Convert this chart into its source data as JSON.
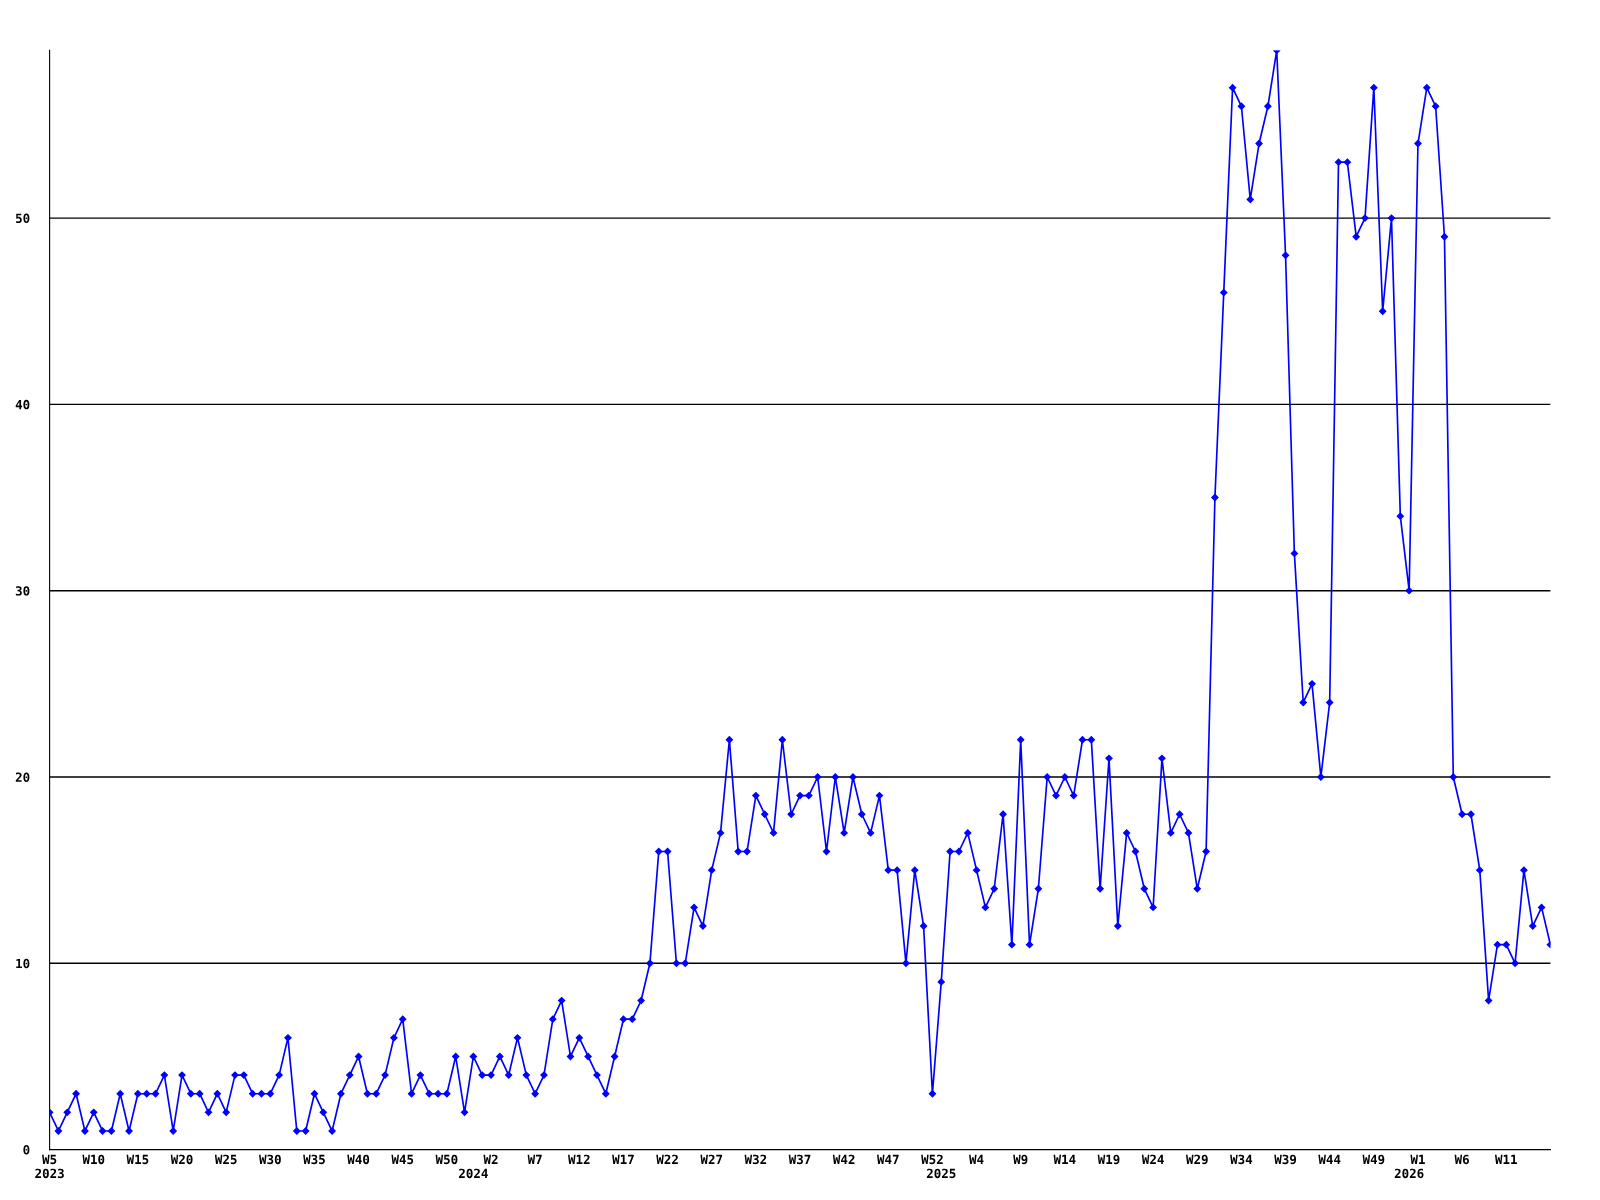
{
  "chart_data": {
    "type": "line",
    "categories": [
      "W5\n2023",
      null,
      null,
      null,
      null,
      "W10",
      null,
      null,
      null,
      null,
      "W15",
      null,
      null,
      null,
      null,
      "W20",
      null,
      null,
      null,
      null,
      "W25",
      null,
      null,
      null,
      null,
      "W30",
      null,
      null,
      null,
      null,
      "W35",
      null,
      null,
      null,
      null,
      "W40",
      null,
      null,
      null,
      null,
      "W45",
      null,
      null,
      null,
      null,
      "W50",
      null,
      null,
      "\n2024",
      null,
      "W2",
      null,
      null,
      null,
      null,
      "W7",
      null,
      null,
      null,
      null,
      "W12",
      null,
      null,
      null,
      null,
      "W17",
      null,
      null,
      null,
      null,
      "W22",
      null,
      null,
      null,
      null,
      "W27",
      null,
      null,
      null,
      null,
      "W32",
      null,
      null,
      null,
      null,
      "W37",
      null,
      null,
      null,
      null,
      "W42",
      null,
      null,
      null,
      null,
      "W47",
      null,
      null,
      null,
      null,
      "W52",
      "\n2025",
      null,
      null,
      null,
      "W4",
      null,
      null,
      null,
      null,
      "W9",
      null,
      null,
      null,
      null,
      "W14",
      null,
      null,
      null,
      null,
      "W19",
      null,
      null,
      null,
      null,
      "W24",
      null,
      null,
      null,
      null,
      "W29",
      null,
      null,
      null,
      null,
      "W34",
      null,
      null,
      null,
      null,
      "W39",
      null,
      null,
      null,
      null,
      "W44",
      null,
      null,
      null,
      null,
      "W49",
      null,
      null,
      null,
      "\n2026",
      "W1",
      null,
      null,
      null,
      null,
      "W6",
      null,
      null,
      null,
      null,
      "W11",
      null,
      null,
      null,
      null,
      null
    ],
    "series": [
      {
        "color": "#0000ff",
        "values": [
          2,
          1,
          2,
          3,
          1,
          2,
          1,
          1,
          3,
          1,
          3,
          3,
          3,
          4,
          1,
          4,
          3,
          3,
          2,
          3,
          2,
          4,
          4,
          3,
          3,
          3,
          4,
          6,
          1,
          1,
          3,
          2,
          1,
          3,
          4,
          5,
          3,
          3,
          4,
          6,
          7,
          3,
          4,
          3,
          3,
          3,
          5,
          2,
          5,
          4,
          4,
          5,
          4,
          6,
          4,
          3,
          4,
          7,
          8,
          5,
          6,
          5,
          4,
          3,
          5,
          7,
          7,
          8,
          10,
          16,
          16,
          10,
          10,
          13,
          12,
          15,
          17,
          22,
          16,
          16,
          19,
          18,
          17,
          22,
          18,
          19,
          19,
          20,
          16,
          20,
          17,
          20,
          18,
          17,
          19,
          15,
          15,
          10,
          15,
          12,
          3,
          9,
          16,
          16,
          17,
          15,
          13,
          14,
          18,
          11,
          22,
          11,
          14,
          20,
          19,
          20,
          19,
          22,
          22,
          14,
          21,
          12,
          17,
          16,
          14,
          13,
          21,
          17,
          18,
          17,
          14,
          16,
          35,
          46,
          57,
          56,
          51,
          54,
          56,
          59,
          48,
          32,
          24,
          25,
          20,
          24,
          53,
          53,
          49,
          50,
          57,
          45,
          50,
          34,
          30,
          54,
          57,
          56,
          49,
          20,
          18,
          18,
          15,
          8,
          11,
          11,
          10,
          15,
          12,
          13,
          11
        ]
      }
    ],
    "ylim": [
      0,
      59
    ],
    "yticks": [
      0,
      10,
      20,
      30,
      40,
      50
    ],
    "grid": "y",
    "marker": "diamond",
    "line_style": "solid"
  }
}
